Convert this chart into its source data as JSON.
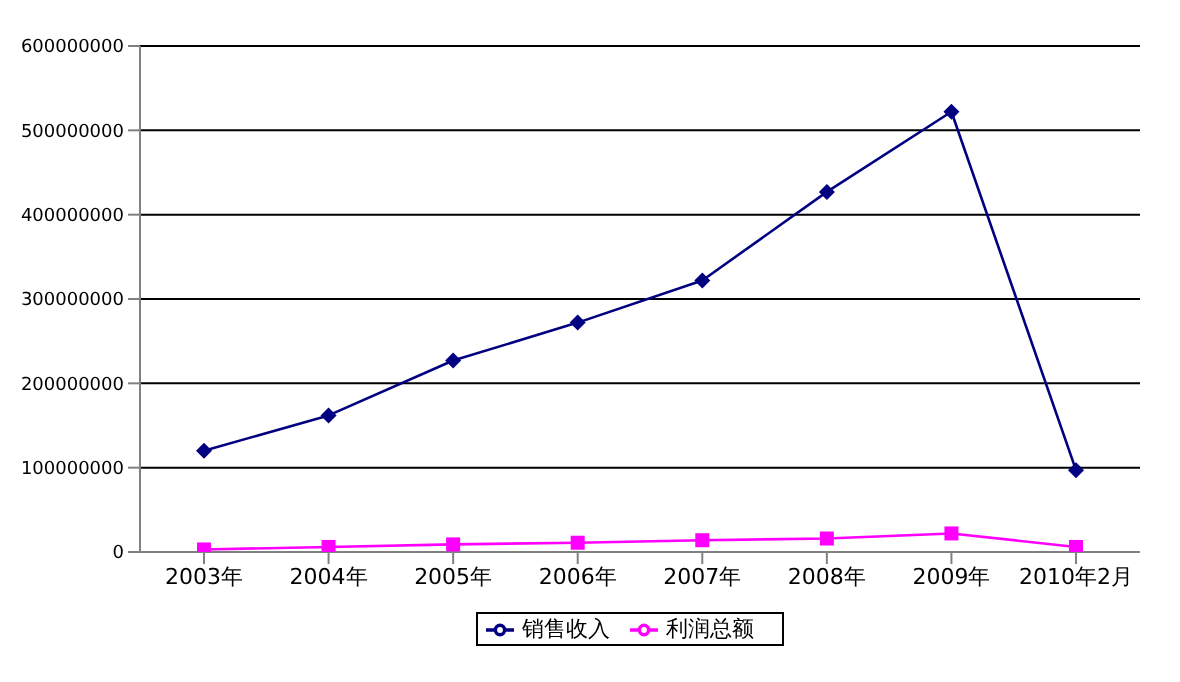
{
  "chart_data": {
    "type": "line",
    "categories": [
      "2003年",
      "2004年",
      "2005年",
      "2006年",
      "2007年",
      "2008年",
      "2009年",
      "2010年2月"
    ],
    "series": [
      {
        "name": "销售收入",
        "color": "#000080",
        "marker": "diamond",
        "values": [
          120000000,
          162000000,
          227000000,
          272000000,
          322000000,
          427000000,
          522000000,
          97000000
        ]
      },
      {
        "name": "利润总额",
        "color": "#ff00ff",
        "marker": "square",
        "values": [
          3000000,
          6000000,
          9000000,
          11000000,
          14000000,
          16000000,
          22000000,
          6000000
        ]
      }
    ],
    "ylim": [
      0,
      600000000
    ],
    "yticks": [
      0,
      100000000,
      200000000,
      300000000,
      400000000,
      500000000,
      600000000
    ],
    "grid": "y",
    "legend": "bottom"
  }
}
